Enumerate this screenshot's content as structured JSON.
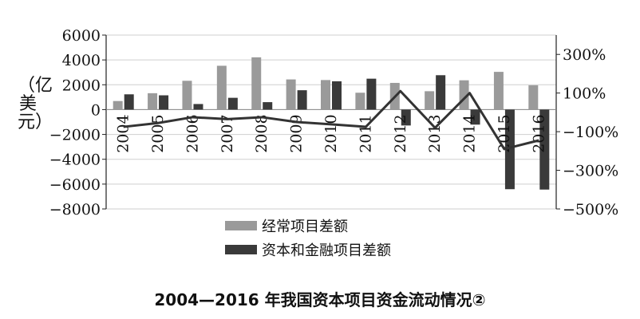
{
  "title": "2004—2016 年我国资本项目资金流动情况②",
  "chart_data": {
    "type": "bar",
    "categories": [
      "2004",
      "2005",
      "2006",
      "2007",
      "2008",
      "2009",
      "2010",
      "2011",
      "2012",
      "2013",
      "2014",
      "2015",
      "2016"
    ],
    "series": [
      {
        "name": "经常项目差额",
        "values": [
          690,
          1320,
          2320,
          3530,
          4210,
          2430,
          2380,
          1360,
          2150,
          1480,
          2360,
          3040,
          1960
        ],
        "color": "#9a9a9a"
      },
      {
        "name": "资本和金融项目差额",
        "values": [
          1230,
          1150,
          450,
          950,
          600,
          1560,
          2280,
          2490,
          -1280,
          2770,
          -1210,
          -6410,
          -6440
        ],
        "color": "#3a3a3a"
      }
    ],
    "line": {
      "values": [
        -75,
        -55,
        -25,
        -35,
        -25,
        -50,
        -62,
        -75,
        110,
        -80,
        100,
        -190,
        -145
      ],
      "color": "#333333"
    },
    "ylabel": "（亿美元）",
    "ylim": [
      -8000,
      6000
    ],
    "yticks": [
      "6000",
      "4000",
      "2000",
      "0",
      "−2000",
      "−4000",
      "−6000",
      "−8000"
    ],
    "y2lim": [
      -500,
      400
    ],
    "y2ticks": [
      "300%",
      "100%",
      "−100%",
      "−300%",
      "−500%"
    ],
    "grid": true,
    "legend_position": "bottom-center"
  }
}
